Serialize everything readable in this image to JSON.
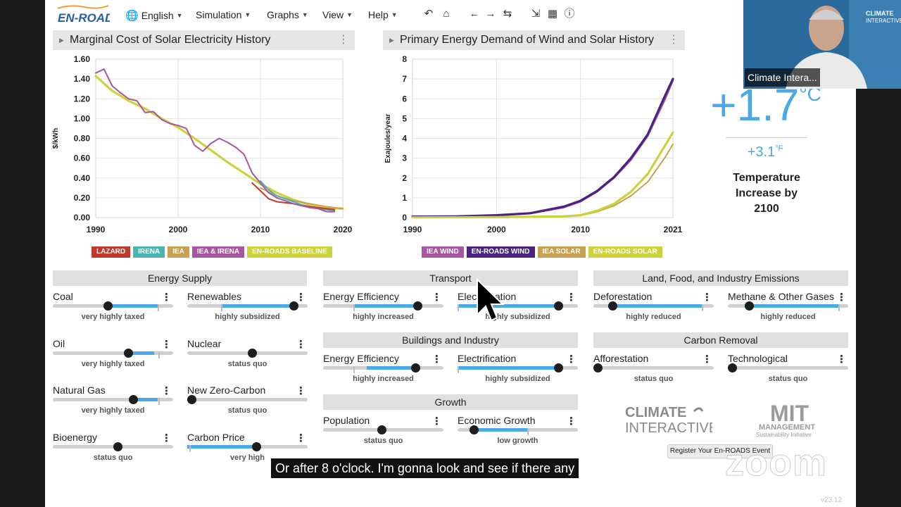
{
  "app": {
    "logo_text": "EN-ROADS",
    "menus": [
      {
        "label": "English"
      },
      {
        "label": "Simulation"
      },
      {
        "label": "Graphs"
      },
      {
        "label": "View"
      },
      {
        "label": "Help"
      }
    ],
    "toolbar_icons": [
      "undo-icon",
      "home-icon",
      "back-icon",
      "forward-icon",
      "refresh-icon",
      "compress-icon",
      "table-icon",
      "info-icon"
    ],
    "version": "v23.12"
  },
  "graphs": {
    "left_title": "Marginal Cost of Solar Electricity History",
    "right_title": "Primary Energy Demand of Wind and Solar History"
  },
  "chart_data": [
    {
      "type": "line",
      "title": "Marginal Cost of Solar Electricity History",
      "ylabel": "$/kWh",
      "xlim": [
        1990,
        2020
      ],
      "ylim": [
        0,
        1.6
      ],
      "xticks": [
        "1990",
        "2000",
        "2010",
        "2020"
      ],
      "yticks": [
        "0.00",
        "0.20",
        "0.40",
        "0.60",
        "0.80",
        "1.00",
        "1.20",
        "1.40",
        "1.60"
      ],
      "series": [
        {
          "name": "LAZARD",
          "color": "#c0392b",
          "x": [
            2009,
            2010,
            2011,
            2012,
            2013,
            2014,
            2015,
            2016,
            2017,
            2018,
            2019
          ],
          "y": [
            0.35,
            0.27,
            0.19,
            0.16,
            0.15,
            0.14,
            0.12,
            0.11,
            0.1,
            0.09,
            0.08
          ]
        },
        {
          "name": "IRENA",
          "color": "#48b5b0",
          "x": [
            2010,
            2011,
            2012,
            2013,
            2014,
            2015,
            2016,
            2017,
            2018,
            2019
          ],
          "y": [
            0.37,
            0.28,
            0.22,
            0.19,
            0.16,
            0.13,
            0.11,
            0.09,
            0.08,
            0.07
          ]
        },
        {
          "name": "IEA",
          "color": "#c8a050",
          "x": [
            2010,
            2012,
            2014,
            2016,
            2018,
            2020
          ],
          "y": [
            0.3,
            0.22,
            0.17,
            0.14,
            0.11,
            0.09
          ]
        },
        {
          "name": "IEA & IRENA",
          "color": "#a9559f",
          "x": [
            1990,
            1991,
            1992,
            1993,
            1994,
            1995,
            1996,
            1997,
            1998,
            1999,
            2000,
            2001,
            2002,
            2003,
            2004,
            2005,
            2006,
            2007,
            2008,
            2009,
            2010,
            2011,
            2012,
            2013,
            2014,
            2015,
            2016,
            2017,
            2018,
            2019
          ],
          "y": [
            1.46,
            1.5,
            1.33,
            1.26,
            1.2,
            1.18,
            1.06,
            1.07,
            0.99,
            0.95,
            0.93,
            0.9,
            0.73,
            0.67,
            0.75,
            0.8,
            0.76,
            0.71,
            0.64,
            0.45,
            0.35,
            0.25,
            0.2,
            0.17,
            0.14,
            0.12,
            0.1,
            0.09,
            0.06,
            0.06
          ]
        },
        {
          "name": "EN-ROADS BASELINE",
          "color": "#cdd23c",
          "x": [
            1990,
            1992,
            1994,
            1996,
            1998,
            2000,
            2002,
            2004,
            2006,
            2008,
            2010,
            2012,
            2014,
            2016,
            2018,
            2020
          ],
          "y": [
            1.43,
            1.28,
            1.18,
            1.1,
            1.0,
            0.91,
            0.8,
            0.68,
            0.56,
            0.45,
            0.34,
            0.25,
            0.18,
            0.13,
            0.1,
            0.09
          ]
        }
      ]
    },
    {
      "type": "line",
      "title": "Primary Energy Demand of Wind and Solar History",
      "ylabel": "Exajoules/year",
      "xlim": [
        1990,
        2021
      ],
      "ylim": [
        0,
        8
      ],
      "xticks": [
        "1990",
        "2000",
        "2010",
        "2021"
      ],
      "yticks": [
        "0",
        "1",
        "2",
        "3",
        "4",
        "5",
        "6",
        "7",
        "8"
      ],
      "series": [
        {
          "name": "IEA WIND",
          "color": "#a9559f",
          "x": [
            1990,
            1995,
            2000,
            2004,
            2008,
            2010,
            2012,
            2014,
            2016,
            2018,
            2020,
            2021
          ],
          "y": [
            0.05,
            0.06,
            0.1,
            0.2,
            0.5,
            0.8,
            1.3,
            2.0,
            2.9,
            4.1,
            5.9,
            6.9
          ]
        },
        {
          "name": "EN-ROADS WIND",
          "color": "#4a2382",
          "x": [
            1990,
            1995,
            2000,
            2004,
            2008,
            2010,
            2012,
            2014,
            2016,
            2018,
            2020,
            2021
          ],
          "y": [
            0.05,
            0.06,
            0.12,
            0.22,
            0.55,
            0.85,
            1.35,
            2.05,
            3.0,
            4.2,
            6.1,
            7.0
          ]
        },
        {
          "name": "IEA SOLAR",
          "color": "#c8a050",
          "x": [
            1990,
            2000,
            2008,
            2010,
            2012,
            2014,
            2016,
            2018,
            2020,
            2021
          ],
          "y": [
            0.01,
            0.02,
            0.05,
            0.1,
            0.3,
            0.6,
            1.1,
            1.8,
            3.0,
            3.7
          ]
        },
        {
          "name": "EN-ROADS SOLAR",
          "color": "#cdd23c",
          "x": [
            1990,
            2000,
            2008,
            2010,
            2012,
            2014,
            2016,
            2018,
            2020,
            2021
          ],
          "y": [
            0.01,
            0.02,
            0.06,
            0.12,
            0.35,
            0.7,
            1.3,
            2.2,
            3.6,
            4.3
          ]
        }
      ]
    }
  ],
  "temperature": {
    "value": "+1.7",
    "unit_c": "°C",
    "value_f": "+3.1",
    "unit_f": "°F",
    "desc_line1": "Temperature",
    "desc_line2": "Increase by",
    "desc_line3": "2100"
  },
  "panels": {
    "energy_supply": "Energy Supply",
    "transport": "Transport",
    "buildings": "Buildings and Industry",
    "growth": "Growth",
    "land": "Land, Food, and Industry Emissions",
    "carbon_removal": "Carbon Removal"
  },
  "sliders": [
    {
      "id": "coal",
      "label": "Coal",
      "status": "very highly taxed",
      "value": 0.42
    },
    {
      "id": "renewables",
      "label": "Renewables",
      "status": "highly subsidized",
      "value": 0.85
    },
    {
      "id": "oil",
      "label": "Oil",
      "status": "very highly taxed",
      "value": 0.59
    },
    {
      "id": "nuclear",
      "label": "Nuclear",
      "status": "status quo",
      "value": 0.5
    },
    {
      "id": "natural-gas",
      "label": "Natural Gas",
      "status": "very highly taxed",
      "value": 0.63
    },
    {
      "id": "new-zero-carbon",
      "label": "New Zero-Carbon",
      "status": "status quo",
      "value": 0.0
    },
    {
      "id": "bioenergy",
      "label": "Bioenergy",
      "status": "status quo",
      "value": 0.5
    },
    {
      "id": "carbon-price",
      "label": "Carbon Price",
      "status": "very high",
      "value": 0.54
    },
    {
      "id": "transport-efficiency",
      "label": "Energy Efficiency",
      "status": "highly increased",
      "value": 0.75
    },
    {
      "id": "transport-electrification",
      "label": "Electrification",
      "status": "highly subsidized",
      "value": 0.8
    },
    {
      "id": "buildings-efficiency",
      "label": "Energy Efficiency",
      "status": "highly increased",
      "value": 0.73
    },
    {
      "id": "buildings-electrification",
      "label": "Electrification",
      "status": "highly subsidized",
      "value": 0.8
    },
    {
      "id": "population",
      "label": "Population",
      "status": "status quo",
      "value": 0.45
    },
    {
      "id": "economic-growth",
      "label": "Economic Growth",
      "status": "low growth",
      "value": 0.1
    },
    {
      "id": "deforestation",
      "label": "Deforestation",
      "status": "highly reduced",
      "value": 0.12
    },
    {
      "id": "methane",
      "label": "Methane & Other Gases",
      "status": "highly reduced",
      "value": 0.14
    },
    {
      "id": "afforestation",
      "label": "Afforestation",
      "status": "status quo",
      "value": 0.0
    },
    {
      "id": "technological",
      "label": "Technological",
      "status": "status quo",
      "value": 0.0
    }
  ],
  "footer": {
    "ci_logo_line1": "CLIMATE",
    "ci_logo_line2": "INTERACTIVE",
    "mit_logo_line1": "MIT",
    "mit_logo_line2": "MANAGEMENT",
    "mit_logo_line3": "Sustainability Initiative",
    "register_button": "Register Your En-ROADS Event"
  },
  "zoom": {
    "participant_name": "Climate Intera...",
    "caption": "Or after 8 o'clock. I'm gonna look and see if there any",
    "watermark": "zoom"
  }
}
